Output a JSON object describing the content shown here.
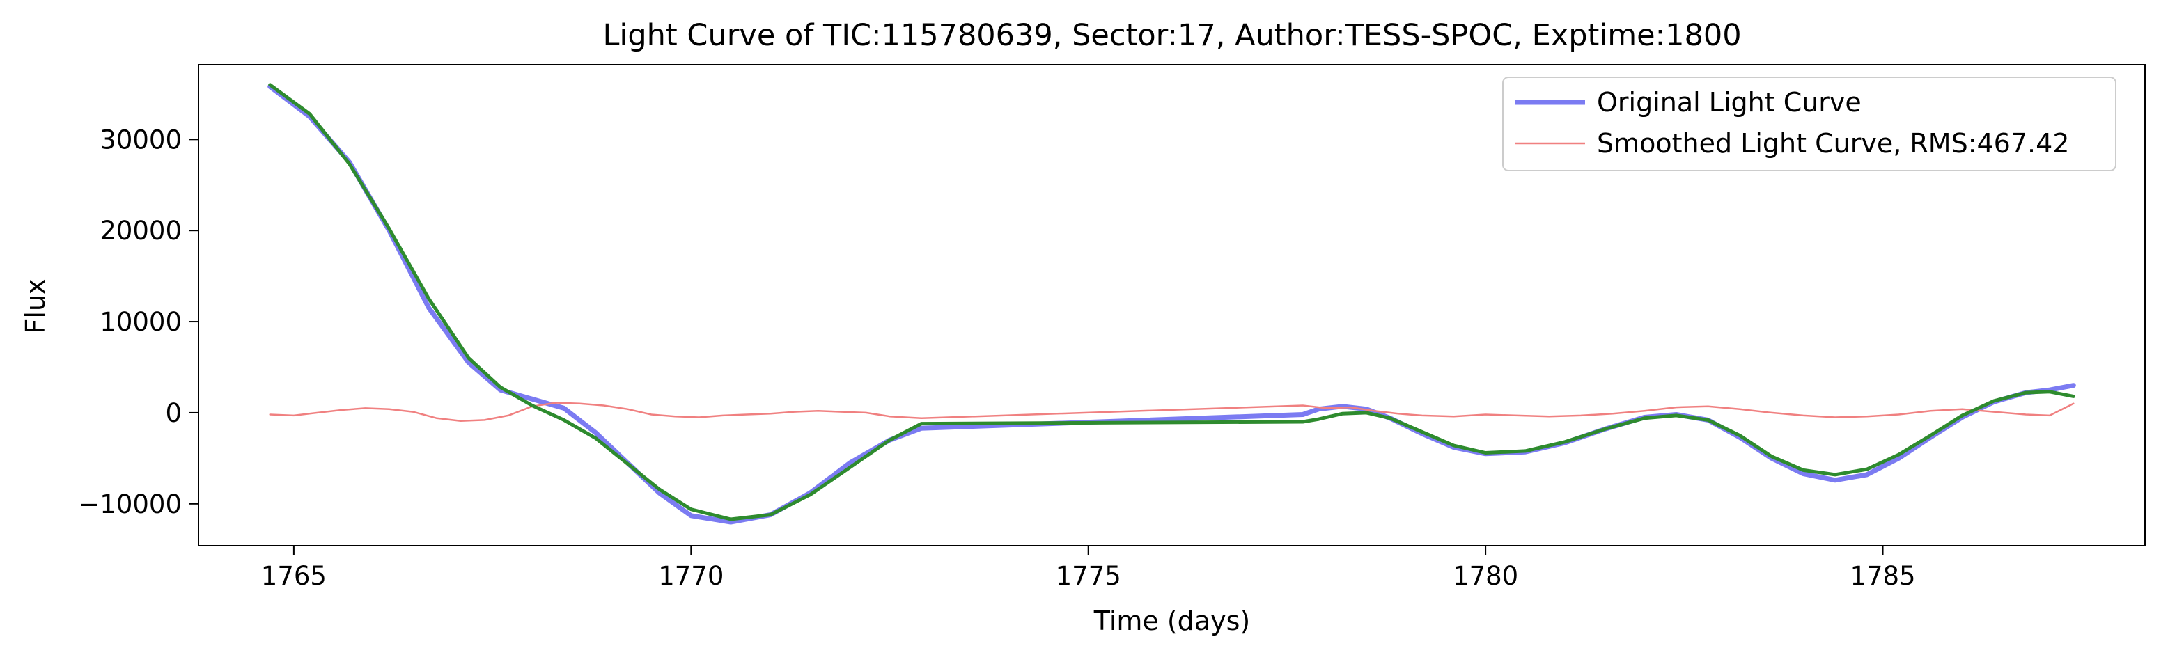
{
  "chart_data": {
    "type": "line",
    "title": "Light Curve of TIC:115780639, Sector:17, Author:TESS-SPOC, Exptime:1800",
    "xlabel": "Time (days)",
    "ylabel": "Flux",
    "xlim": [
      1763.8,
      1788.3
    ],
    "ylim": [
      -14600,
      38200
    ],
    "xticks": [
      {
        "value": 1765,
        "label": "1765"
      },
      {
        "value": 1770,
        "label": "1770"
      },
      {
        "value": 1775,
        "label": "1775"
      },
      {
        "value": 1780,
        "label": "1780"
      },
      {
        "value": 1785,
        "label": "1785"
      }
    ],
    "yticks": [
      {
        "value": -10000,
        "label": "−10000"
      },
      {
        "value": 0,
        "label": "0"
      },
      {
        "value": 10000,
        "label": "10000"
      },
      {
        "value": 20000,
        "label": "20000"
      },
      {
        "value": 30000,
        "label": "30000"
      }
    ],
    "grid": false,
    "legend_position": "top-right",
    "legend": [
      {
        "label": "Original Light Curve",
        "series": "original"
      },
      {
        "label": "Smoothed Light Curve, RMS:467.42",
        "series": "residual"
      }
    ],
    "series": [
      {
        "name": "Original Light Curve",
        "key": "original",
        "color": "#7b7bf2",
        "x": [
          1764.7,
          1765.2,
          1765.7,
          1766.2,
          1766.7,
          1767.2,
          1767.6,
          1768.0,
          1768.4,
          1768.8,
          1769.2,
          1769.6,
          1770.0,
          1770.5,
          1771.0,
          1771.5,
          1772.0,
          1772.5,
          1772.9,
          1777.7,
          1777.9,
          1778.2,
          1778.5,
          1778.8,
          1779.2,
          1779.6,
          1780.0,
          1780.5,
          1781.0,
          1781.5,
          1782.0,
          1782.4,
          1782.8,
          1783.2,
          1783.6,
          1784.0,
          1784.4,
          1784.8,
          1785.2,
          1785.6,
          1786.0,
          1786.4,
          1786.8,
          1787.1,
          1787.4
        ],
        "y": [
          35800,
          32500,
          27500,
          20000,
          11500,
          5500,
          2500,
          1500,
          500,
          -2200,
          -5500,
          -8800,
          -11300,
          -12000,
          -11200,
          -8800,
          -5500,
          -3000,
          -1700,
          -200,
          400,
          700,
          400,
          -600,
          -2300,
          -3800,
          -4500,
          -4300,
          -3300,
          -1800,
          -500,
          -200,
          -800,
          -2700,
          -5000,
          -6700,
          -7400,
          -6800,
          -5000,
          -2700,
          -500,
          1200,
          2200,
          2500,
          3000
        ]
      },
      {
        "name": "Smoothed Light Curve, RMS:467.42",
        "key": "residual",
        "color": "#f08080",
        "x": [
          1764.7,
          1765.0,
          1765.3,
          1765.6,
          1765.9,
          1766.2,
          1766.5,
          1766.8,
          1767.1,
          1767.4,
          1767.7,
          1768.0,
          1768.3,
          1768.6,
          1768.9,
          1769.2,
          1769.5,
          1769.8,
          1770.1,
          1770.4,
          1770.7,
          1771.0,
          1771.3,
          1771.6,
          1771.9,
          1772.2,
          1772.5,
          1772.9,
          1777.7,
          1778.0,
          1778.3,
          1778.6,
          1778.9,
          1779.2,
          1779.6,
          1780.0,
          1780.4,
          1780.8,
          1781.2,
          1781.6,
          1782.0,
          1782.4,
          1782.8,
          1783.2,
          1783.6,
          1784.0,
          1784.4,
          1784.8,
          1785.2,
          1785.6,
          1786.0,
          1786.4,
          1786.8,
          1787.1,
          1787.4
        ],
        "y": [
          -200,
          -300,
          0,
          300,
          500,
          400,
          100,
          -600,
          -900,
          -800,
          -300,
          700,
          1100,
          1000,
          800,
          400,
          -200,
          -400,
          -500,
          -300,
          -200,
          -100,
          100,
          200,
          100,
          0,
          -400,
          -600,
          800,
          500,
          600,
          200,
          -100,
          -300,
          -400,
          -200,
          -300,
          -400,
          -300,
          -100,
          200,
          600,
          700,
          400,
          0,
          -300,
          -500,
          -400,
          -200,
          200,
          400,
          100,
          -200,
          -300,
          1000
        ]
      },
      {
        "name": "",
        "key": "model",
        "color": "#2e8b2e",
        "x": [
          1764.7,
          1765.2,
          1765.7,
          1766.2,
          1766.7,
          1767.2,
          1767.6,
          1768.0,
          1768.4,
          1768.8,
          1769.2,
          1769.6,
          1770.0,
          1770.5,
          1771.0,
          1771.5,
          1772.0,
          1772.5,
          1772.9,
          1777.7,
          1777.9,
          1778.2,
          1778.5,
          1778.8,
          1779.2,
          1779.6,
          1780.0,
          1780.5,
          1781.0,
          1781.5,
          1782.0,
          1782.4,
          1782.8,
          1783.2,
          1783.6,
          1784.0,
          1784.4,
          1784.8,
          1785.2,
          1785.6,
          1786.0,
          1786.4,
          1786.8,
          1787.1,
          1787.4
        ],
        "y": [
          36000,
          32800,
          27300,
          20200,
          12500,
          6000,
          2800,
          800,
          -800,
          -2800,
          -5600,
          -8400,
          -10600,
          -11700,
          -11200,
          -9000,
          -6000,
          -3000,
          -1200,
          -1000,
          -700,
          -100,
          0,
          -600,
          -2100,
          -3600,
          -4400,
          -4200,
          -3200,
          -1800,
          -600,
          -300,
          -800,
          -2500,
          -4800,
          -6300,
          -6800,
          -6200,
          -4600,
          -2500,
          -300,
          1300,
          2200,
          2300,
          1800
        ]
      }
    ]
  }
}
